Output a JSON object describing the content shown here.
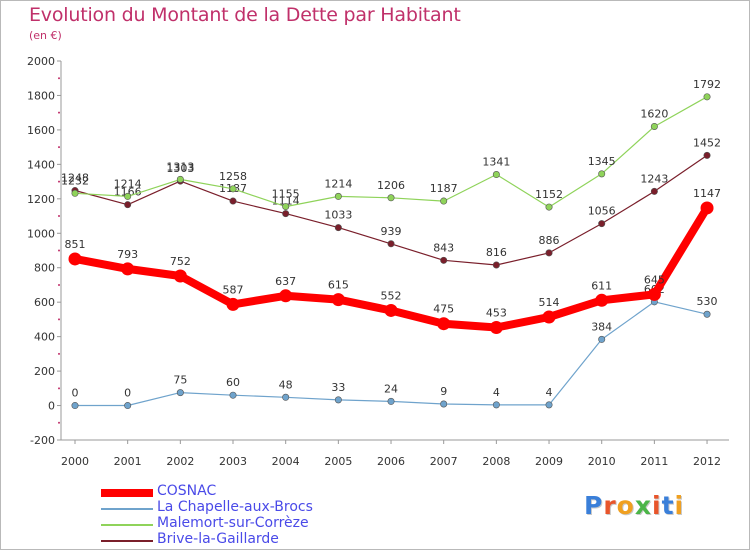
{
  "title": "Evolution du Montant de la Dette par Habitant",
  "subtitle": "(en €)",
  "logo_text": "Proxiti",
  "chart_data": {
    "type": "line",
    "x": [
      2000,
      2001,
      2002,
      2003,
      2004,
      2005,
      2006,
      2007,
      2008,
      2009,
      2010,
      2011,
      2012
    ],
    "ylim": [
      -200,
      2000
    ],
    "yticks": [
      -200,
      0,
      200,
      400,
      600,
      800,
      1000,
      1200,
      1400,
      1600,
      1800,
      2000
    ],
    "grid": false,
    "legend_position": "bottom-left",
    "series": [
      {
        "name": "Brive-la-Gaillarde",
        "color": "#7a1f2b",
        "values": [
          1248,
          1166,
          1303,
          1187,
          1114,
          1033,
          939,
          843,
          816,
          886,
          1056,
          1243,
          1452
        ]
      },
      {
        "name": "Malemort-sur-Corrèze",
        "color": "#8fd35a",
        "values": [
          1232,
          1214,
          1313,
          1258,
          1155,
          1214,
          1206,
          1187,
          1341,
          1152,
          1345,
          1620,
          1792
        ]
      },
      {
        "name": "La Chapelle-aux-Brocs",
        "color": "#6fa3cc",
        "values": [
          0,
          0,
          75,
          60,
          48,
          33,
          24,
          9,
          4,
          4,
          384,
          602,
          530
        ]
      },
      {
        "name": "COSNAC",
        "color": "#ff0000",
        "values": [
          851,
          793,
          752,
          587,
          637,
          615,
          552,
          475,
          453,
          514,
          611,
          645,
          1147
        ]
      }
    ],
    "legend_order": [
      "COSNAC",
      "La Chapelle-aux-Brocs",
      "Malemort-sur-Corrèze",
      "Brive-la-Gaillarde"
    ]
  }
}
